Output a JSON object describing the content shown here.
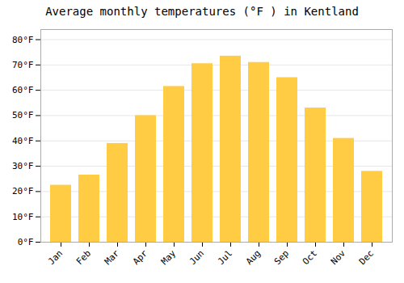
{
  "chart_data": {
    "type": "bar",
    "title": "Average monthly temperatures (°F ) in Kentland",
    "categories": [
      "Jan",
      "Feb",
      "Mar",
      "Apr",
      "May",
      "Jun",
      "Jul",
      "Aug",
      "Sep",
      "Oct",
      "Nov",
      "Dec"
    ],
    "values": [
      22.5,
      26.5,
      39.0,
      50.0,
      61.5,
      70.5,
      73.5,
      71.0,
      65.0,
      53.0,
      41.0,
      28.0
    ],
    "color": "#FFCC44",
    "ylim": [
      0,
      84
    ],
    "yticks": [
      {
        "value": 0,
        "label": "0°F"
      },
      {
        "value": 10,
        "label": "10°F"
      },
      {
        "value": 20,
        "label": "20°F"
      },
      {
        "value": 30,
        "label": "30°F"
      },
      {
        "value": 40,
        "label": "40°F"
      },
      {
        "value": 50,
        "label": "50°F"
      },
      {
        "value": 60,
        "label": "60°F"
      },
      {
        "value": 70,
        "label": "70°F"
      },
      {
        "value": 80,
        "label": "80°F"
      }
    ],
    "grid": true
  }
}
